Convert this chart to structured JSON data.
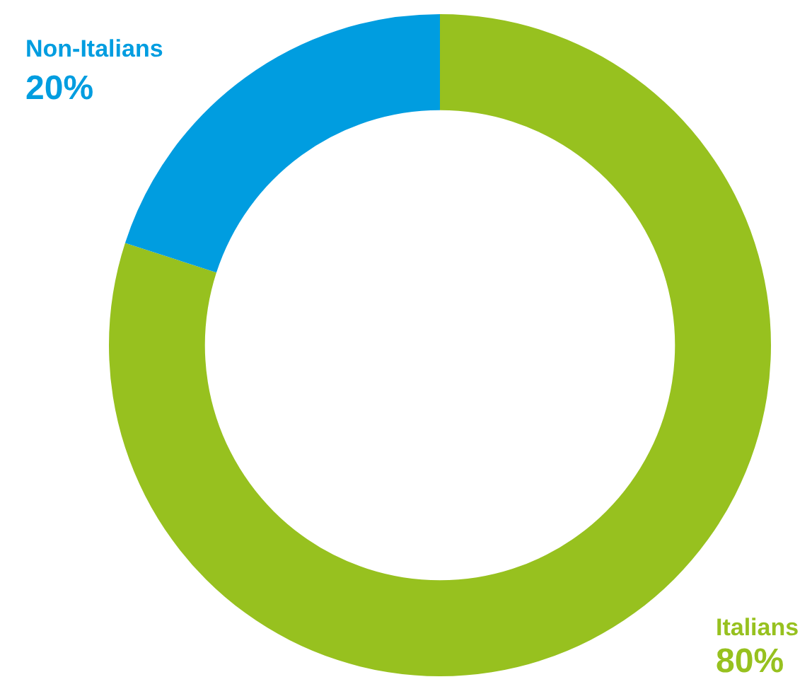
{
  "chart_data": {
    "type": "donut",
    "categories": [
      "Italians",
      "Non-Italians"
    ],
    "values": [
      80,
      20
    ],
    "colors": [
      "#97c11f",
      "#009de0"
    ],
    "value_labels": [
      "80%",
      "20%"
    ],
    "legend": false
  }
}
